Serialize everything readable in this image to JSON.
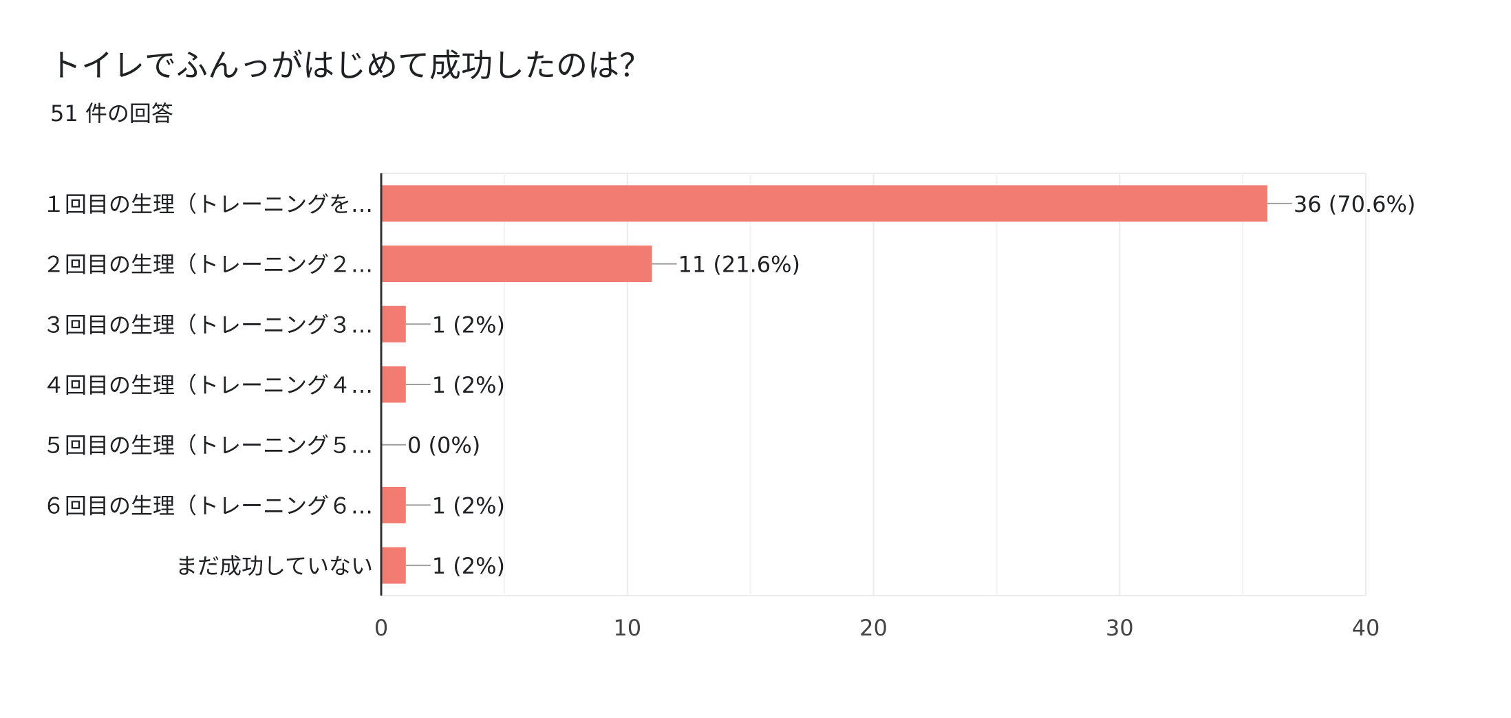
{
  "question": {
    "title": "トイレでふんっがはじめて成功したのは？",
    "response_count": "51 件の回答"
  },
  "colors": {
    "bar": "#f27b72",
    "grid": "#ebebeb",
    "axis": "#333333",
    "leader": "#9e9e9e",
    "text": "#202124"
  },
  "chart_data": {
    "type": "bar",
    "orientation": "horizontal",
    "categories": [
      "１回目の生理（トレーニングを…",
      "２回目の生理（トレーニング２…",
      "３回目の生理（トレーニング３…",
      "４回目の生理（トレーニング４…",
      "５回目の生理（トレーニング５…",
      "６回目の生理（トレーニング６…",
      "まだ成功していない"
    ],
    "values": [
      36,
      11,
      1,
      1,
      0,
      1,
      1
    ],
    "data_labels": [
      "36 (70.6%)",
      "11 (21.6%)",
      "1 (2%)",
      "1 (2%)",
      "0 (0%)",
      "1 (2%)",
      "1 (2%)"
    ],
    "xlim": [
      0,
      40
    ],
    "xticks": [
      0,
      10,
      20,
      30,
      40
    ],
    "minor_gridlines": [
      5,
      15,
      25,
      35
    ],
    "grid": true,
    "legend": "none"
  }
}
